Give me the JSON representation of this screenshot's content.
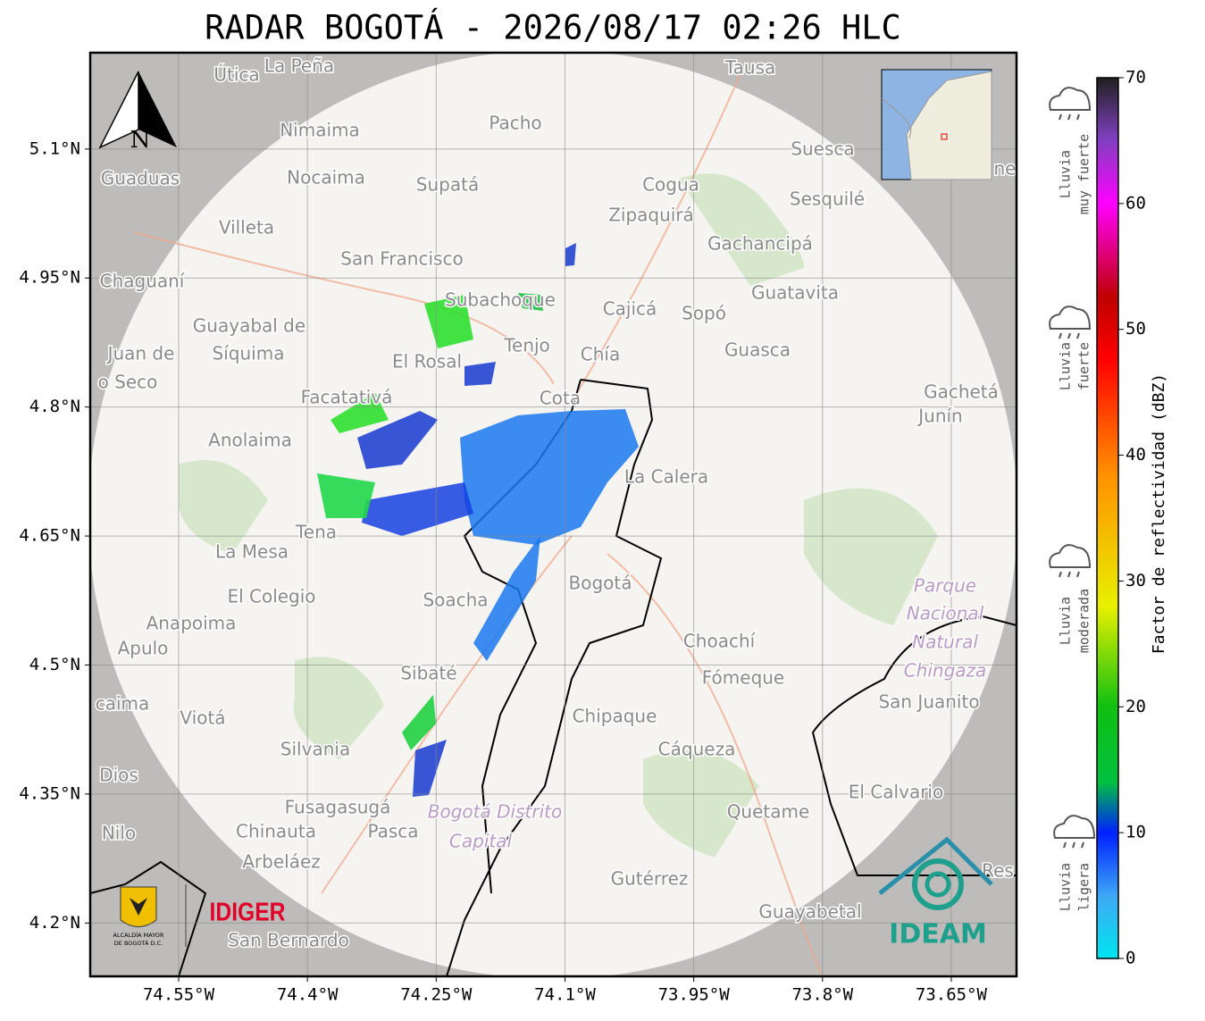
{
  "title": "RADAR BOGOTÁ - 2026/08/17 02:26 HLC",
  "map": {
    "xlim": [
      -74.653,
      -73.574
    ],
    "ylim": [
      4.138,
      5.212
    ],
    "xticks": [
      {
        "value": -74.55,
        "label": "74.55°W"
      },
      {
        "value": -74.4,
        "label": "74.4°W"
      },
      {
        "value": -74.25,
        "label": "74.25°W"
      },
      {
        "value": -74.1,
        "label": "74.1°W"
      },
      {
        "value": -73.95,
        "label": "73.95°W"
      },
      {
        "value": -73.8,
        "label": "73.8°W"
      },
      {
        "value": -73.65,
        "label": "73.65°W"
      }
    ],
    "yticks": [
      {
        "value": 4.2,
        "label": "4.2°N"
      },
      {
        "value": 4.35,
        "label": "4.35°N"
      },
      {
        "value": 4.5,
        "label": "4.5°N"
      },
      {
        "value": 4.65,
        "label": "4.65°N"
      },
      {
        "value": 4.8,
        "label": "4.8°N"
      },
      {
        "value": 4.95,
        "label": "4.95°N"
      },
      {
        "value": 5.1,
        "label": "5.1°N"
      }
    ],
    "grid": true,
    "north": "N",
    "places": [
      "Útica",
      "La Peña",
      "Tausa",
      "Nimaima",
      "Pacho",
      "Guaduas",
      "Nocaima",
      "Supatá",
      "Cogua",
      "Suesca",
      "Zipaquirá",
      "Sesquilé",
      "Villeta",
      "Gachancipá",
      "San Francisco",
      "Chaguaní",
      "Guatavita",
      "Subachoque",
      "Cajicá",
      "Sopó",
      "Guayabal de",
      "Síquima",
      "Tenjo",
      "Chía",
      "Guasca",
      "Juan de",
      "o Seco",
      "El Rosal",
      "Facatativá",
      "Cota",
      "Gachetá",
      "Junín",
      "Anolaima",
      "La Calera",
      "Tena",
      "La Mesa",
      "Bogotá",
      "El Colegio",
      "Soacha",
      "Anapoima",
      "Apulo",
      "Choachí",
      "Sibaté",
      "Fómeque",
      "San Juanito",
      "caima",
      "Viotá",
      "Chipaque",
      "Silvania",
      "Cáqueza",
      "Dios",
      "El Calvario",
      "Fusagasugá",
      "Quetame",
      "Nilo",
      "Chinauta",
      "Pasca",
      "Arbeláez",
      "Gutérrez",
      "Res",
      "Guayabetal",
      "San Bernardo",
      "ne"
    ],
    "areas": [
      "Parque",
      "Nacional",
      "Natural",
      "Chingaza",
      "Bogotá Distrito",
      "Capital"
    ]
  },
  "colorbar": {
    "label": "Factor de reflectividad (dBZ)",
    "lim": [
      0,
      70
    ],
    "ticks": [
      0,
      10,
      20,
      30,
      40,
      50,
      60,
      70
    ],
    "categories": [
      [
        "Lluvia",
        "muy fuerte"
      ],
      [
        "Lluvia",
        "fuerte"
      ],
      [
        "Lluvia",
        "moderada"
      ],
      [
        "Lluvia",
        "ligera"
      ]
    ]
  },
  "logos": {
    "alcaldia": [
      "ALCALDÍA MAYOR",
      "DE BOGOTÁ D.C."
    ],
    "idiger": "IDIGER",
    "ideam": "IDEAM"
  }
}
